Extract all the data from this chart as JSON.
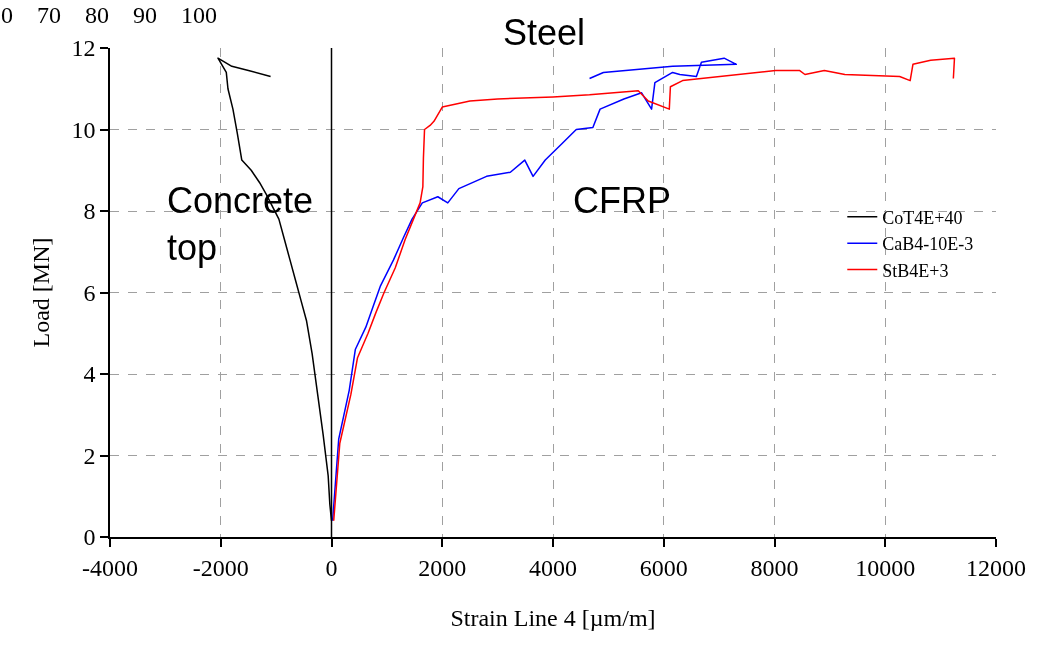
{
  "chart_data": {
    "type": "line",
    "xlabel": "Strain Line 4 [µm/m]",
    "ylabel": "Load [MN]",
    "xlim": [
      -4000,
      12000
    ],
    "xticks": [
      -4000,
      -2000,
      0,
      2000,
      4000,
      6000,
      8000,
      10000,
      12000
    ],
    "ylim": [
      0,
      12
    ],
    "yticks": [
      0,
      2,
      4,
      6,
      8,
      10,
      12
    ],
    "grid": true,
    "legend": "right",
    "marker": "none",
    "line_style": "solid",
    "ref_lines": [
      {
        "axis": "x",
        "value": 0,
        "color": "#000000"
      }
    ],
    "annotations": [
      "Steel",
      "Concrete top",
      "CFRP",
      "0    70    80    90    100"
    ],
    "series": [
      {
        "name": "CoT4E+40",
        "color": "#000000",
        "x": [
          0,
          -30,
          -60,
          -150,
          -250,
          -350,
          -450,
          -550,
          -650,
          -750,
          -850,
          -950,
          -1100,
          -1175,
          -1300,
          -1450,
          -1620,
          -1700,
          -1780,
          -1870,
          -1900,
          -2050,
          -1800,
          -1500,
          -1100
        ],
        "values": [
          0.4,
          0.8,
          1.5,
          2.5,
          3.5,
          4.5,
          5.3,
          5.8,
          6.3,
          6.8,
          7.3,
          7.8,
          8.2,
          8.4,
          8.7,
          9.0,
          9.25,
          9.9,
          10.5,
          11.0,
          11.4,
          11.75,
          11.55,
          11.45,
          11.3
        ]
      },
      {
        "name": "CaB4-10E-3",
        "color": "#0000ff",
        "x": [
          20,
          130,
          320,
          430,
          620,
          750,
          880,
          1120,
          1300,
          1455,
          1640,
          1920,
          2100,
          2300,
          2800,
          3230,
          3490,
          3640,
          3860,
          4160,
          4420,
          4720,
          4850,
          5280,
          5600,
          5780,
          5840,
          6160,
          6290,
          6590,
          6680,
          7090,
          7310,
          6160,
          4910,
          4660
        ],
        "values": [
          0.4,
          2.4,
          3.6,
          4.6,
          5.15,
          5.65,
          6.15,
          6.8,
          7.35,
          7.8,
          8.2,
          8.35,
          8.2,
          8.55,
          8.85,
          8.95,
          9.25,
          8.85,
          9.25,
          9.65,
          10.0,
          10.05,
          10.5,
          10.75,
          10.9,
          10.5,
          11.15,
          11.4,
          11.35,
          11.3,
          11.65,
          11.75,
          11.6,
          11.55,
          11.4,
          11.25
        ]
      },
      {
        "name": "StB4E+3",
        "color": "#ff0000",
        "x": [
          40,
          150,
          350,
          470,
          660,
          800,
          950,
          1150,
          1330,
          1480,
          1600,
          1650,
          1660,
          1680,
          1780,
          1850,
          2000,
          2500,
          3000,
          4000,
          4660,
          5540,
          5720,
          6100,
          6120,
          6340,
          8020,
          8450,
          8550,
          8900,
          9270,
          10260,
          10450,
          10500,
          10820,
          11250,
          11230
        ],
        "values": [
          0.4,
          2.3,
          3.5,
          4.4,
          5.0,
          5.5,
          6.0,
          6.6,
          7.3,
          7.8,
          8.2,
          8.6,
          9.3,
          10.0,
          10.1,
          10.2,
          10.55,
          10.7,
          10.75,
          10.8,
          10.85,
          10.95,
          10.7,
          10.5,
          11.05,
          11.2,
          11.45,
          11.45,
          11.35,
          11.45,
          11.35,
          11.3,
          11.2,
          11.6,
          11.7,
          11.75,
          11.25
        ]
      }
    ]
  }
}
